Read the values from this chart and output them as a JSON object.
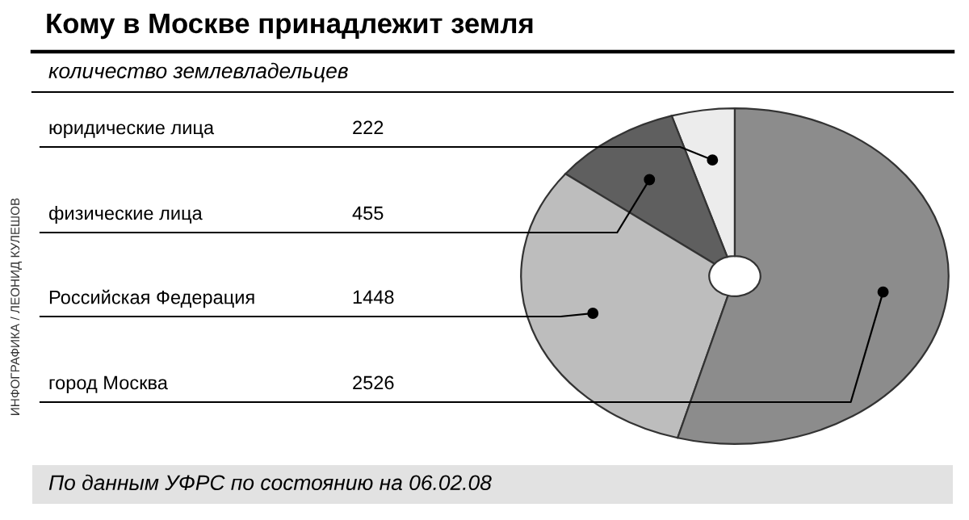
{
  "chart_data": {
    "type": "donut",
    "title": "Кому в Москве принадлежит земля",
    "subtitle": "количество землевладельцев",
    "categories": [
      "юридические лица",
      "физические лица",
      "Российская Федерация",
      "город Москва"
    ],
    "values": [
      222,
      455,
      1448,
      2526
    ],
    "colors": [
      "#ececec",
      "#5f5f5f",
      "#bdbdbd",
      "#8c8c8c"
    ],
    "data_labels": true,
    "annotations": [
      "По данным УФРС по состоянию на 06.02.08",
      "ИНФОГРАФИКА / ЛЕОНИД КУЛЕШОВ"
    ]
  }
}
